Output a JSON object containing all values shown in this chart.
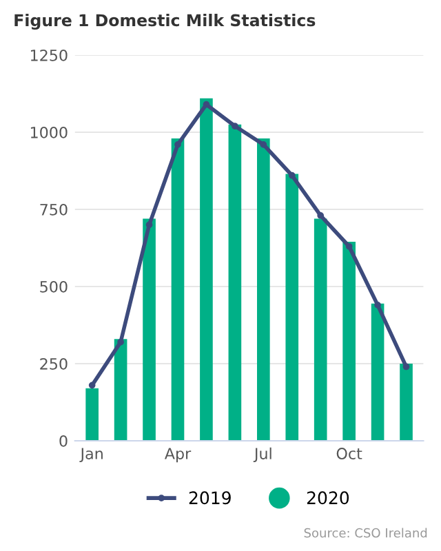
{
  "chart_data": {
    "type": "bar",
    "title": "Figure 1 Domestic Milk Statistics",
    "categories": [
      "Jan",
      null,
      null,
      "Apr",
      null,
      null,
      "Jul",
      null,
      null,
      "Oct",
      null,
      null
    ],
    "series": [
      {
        "name": "2019",
        "type": "line",
        "color": "#3d4b7d",
        "marker": "circle",
        "values": [
          180,
          320,
          700,
          960,
          1090,
          1020,
          960,
          860,
          730,
          630,
          440,
          240
        ]
      },
      {
        "name": "2020",
        "color": "#00b087",
        "values": [
          170,
          330,
          720,
          980,
          1110,
          1025,
          980,
          865,
          720,
          645,
          445,
          250
        ]
      }
    ],
    "ylim": [
      0,
      1250
    ],
    "yticks": [
      0,
      250,
      500,
      750,
      1000,
      1250
    ],
    "grid": "y",
    "legend": "bottom",
    "annotations": [
      "Source: CSO Ireland"
    ]
  }
}
